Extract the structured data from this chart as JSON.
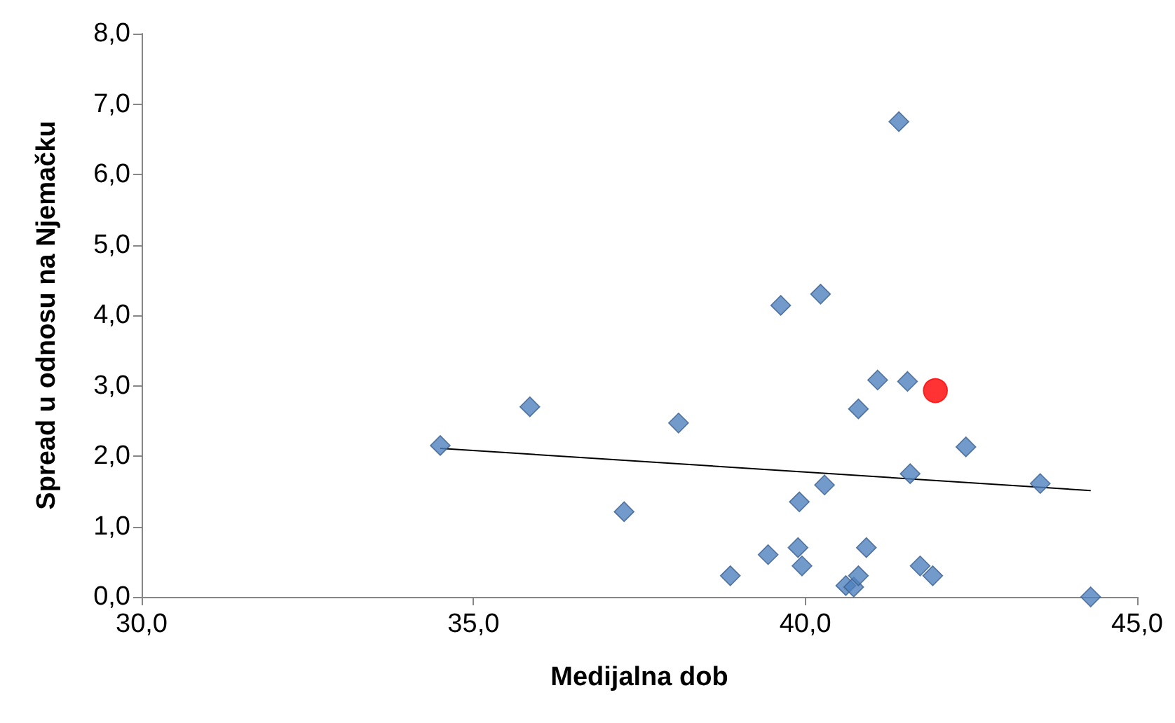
{
  "chart_data": {
    "type": "scatter",
    "xlabel": "Medijalna dob",
    "ylabel": "Spread u odnosu na Njemačku",
    "xlim": [
      30,
      45
    ],
    "xticks": [
      {
        "value": 30,
        "label": "30,0"
      },
      {
        "value": 35,
        "label": "35,0"
      },
      {
        "value": 40,
        "label": "40,0"
      },
      {
        "value": 45,
        "label": "45,0"
      }
    ],
    "ylim": [
      0,
      8
    ],
    "yticks": [
      {
        "value": 0,
        "label": "0,0"
      },
      {
        "value": 1,
        "label": "1,0"
      },
      {
        "value": 2,
        "label": "2,0"
      },
      {
        "value": 3,
        "label": "3,0"
      },
      {
        "value": 4,
        "label": "4,0"
      },
      {
        "value": 5,
        "label": "5,0"
      },
      {
        "value": 6,
        "label": "6,0"
      },
      {
        "value": 7,
        "label": "7,0"
      },
      {
        "value": 8,
        "label": "8,0"
      }
    ],
    "grid": false,
    "series": [
      {
        "marker": "diamond",
        "color": "#4f81bd",
        "x": [
          34.5,
          35.85,
          37.27,
          38.09,
          38.87,
          39.44,
          39.63,
          39.89,
          39.91,
          39.95,
          40.23,
          40.29,
          40.61,
          40.73,
          40.8,
          40.8,
          40.92,
          41.09,
          41.41,
          41.54,
          41.58,
          41.73,
          41.92,
          42.42,
          43.54,
          44.3
        ],
        "values": [
          2.15,
          2.7,
          1.21,
          2.47,
          0.3,
          0.6,
          4.14,
          0.7,
          1.35,
          0.44,
          4.3,
          1.59,
          0.16,
          0.14,
          0.3,
          2.67,
          0.7,
          3.08,
          6.75,
          3.06,
          1.75,
          0.44,
          0.3,
          2.13,
          1.61,
          0.0
        ]
      },
      {
        "marker": "circle",
        "color": "#ff0000",
        "x": [
          41.96
        ],
        "values": [
          2.93
        ]
      },
      {
        "type": "line",
        "marker": "none",
        "color": "#000000",
        "x": [
          34.5,
          44.3
        ],
        "values": [
          2.11,
          1.51
        ]
      }
    ]
  }
}
